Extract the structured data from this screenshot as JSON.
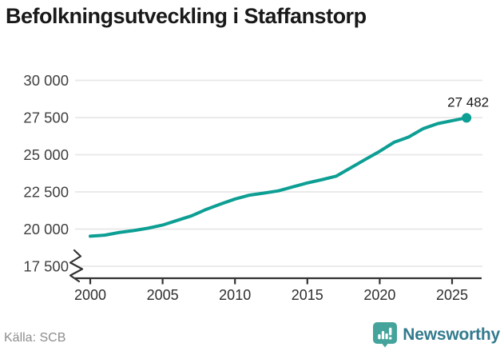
{
  "title": "Befolkningsutveckling i Staffanstorp",
  "source": "Källa: SCB",
  "branding": {
    "name": "Newsworthy",
    "icon": "newsworthy-bars-icon",
    "icon_color": "#44a49b",
    "text_color": "#337a8e"
  },
  "chart_data": {
    "type": "line",
    "title": "Befolkningsutveckling i Staffanstorp",
    "x": [
      2000,
      2001,
      2002,
      2003,
      2004,
      2005,
      2006,
      2007,
      2008,
      2009,
      2010,
      2011,
      2012,
      2013,
      2014,
      2015,
      2016,
      2017,
      2018,
      2019,
      2020,
      2021,
      2022,
      2023,
      2024,
      2025,
      2026
    ],
    "values": [
      19520,
      19590,
      19770,
      19900,
      20060,
      20270,
      20580,
      20890,
      21320,
      21680,
      22020,
      22280,
      22420,
      22570,
      22840,
      23100,
      23320,
      23560,
      24120,
      24680,
      25230,
      25840,
      26190,
      26750,
      27090,
      27290,
      27482
    ],
    "latest_value": 27482,
    "end_label": "27 482",
    "line_color": "#0d9e94",
    "xlabel": "",
    "ylabel": "",
    "ylim": [
      17500,
      30000
    ],
    "xlim": [
      2000,
      2026
    ],
    "ytick_values": [
      30000,
      27500,
      25000,
      22500,
      20000,
      17500
    ],
    "ytick_labels": [
      "30 000",
      "27 500",
      "25 000",
      "22 500",
      "20 000",
      "17 500"
    ],
    "xtick_values": [
      2000,
      2005,
      2010,
      2015,
      2020,
      2025
    ],
    "xtick_labels": [
      "2000",
      "2005",
      "2010",
      "2015",
      "2020",
      "2025"
    ],
    "grid": "horizontal",
    "gridline_color": "#e7e7e7",
    "axis_color": "#333333",
    "axis_break": true,
    "legend": "none"
  }
}
